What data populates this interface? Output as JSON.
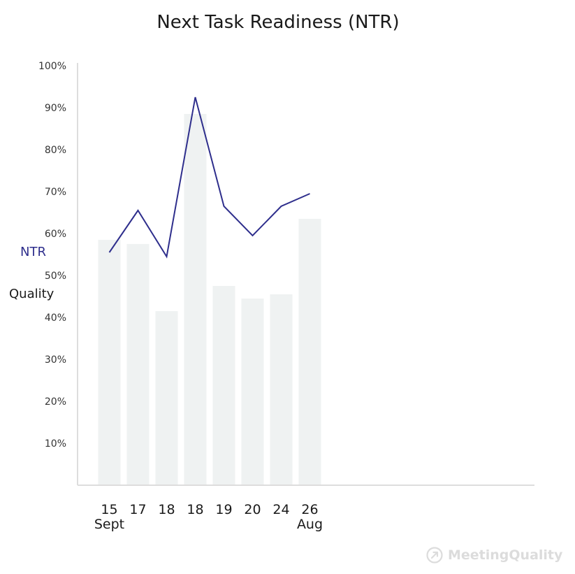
{
  "chart_data": {
    "type": "bar",
    "title": "Next Task Readiness (NTR)",
    "categories": [
      "15",
      "17",
      "18",
      "18",
      "19",
      "20",
      "24",
      "26"
    ],
    "month_labels": [
      {
        "category_index": 0,
        "text": "Sept"
      },
      {
        "category_index": 7,
        "text": "Aug"
      }
    ],
    "ylim": [
      0,
      100
    ],
    "yticks": [
      "10%",
      "20%",
      "30%",
      "40%",
      "50%",
      "60%",
      "70%",
      "80%",
      "90%",
      "100%"
    ],
    "series": [
      {
        "name": "Quality",
        "kind": "bar",
        "values": [
          58.5,
          57.5,
          41.5,
          88.5,
          47.5,
          44.5,
          45.5,
          63.5
        ]
      },
      {
        "name": "NTR",
        "kind": "line",
        "values": [
          55.5,
          65.5,
          54.5,
          92.5,
          66.5,
          59.5,
          66.5,
          69.5
        ]
      }
    ],
    "grid": false,
    "legend": "left"
  },
  "colors": {
    "bar": "#eff2f2",
    "line": "#2e2e8c",
    "axis": "#dddddd",
    "watermark": "#dcdcdc"
  },
  "watermark": {
    "text": "MeetingQuality",
    "icon": "arrow-circle-icon"
  }
}
